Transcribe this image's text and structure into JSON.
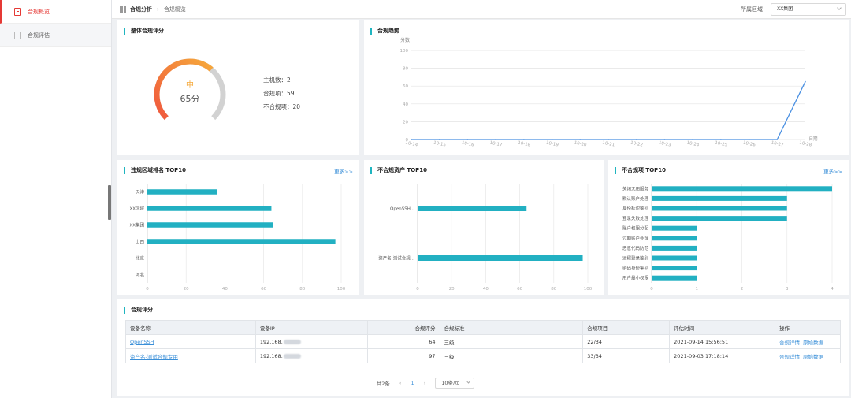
{
  "sidebar": {
    "items": [
      {
        "label": "合规概览",
        "icon": "report-icon",
        "active": true
      },
      {
        "label": "合规评估",
        "icon": "document-icon",
        "active": false
      }
    ]
  },
  "breadcrumb": {
    "parent": "合规分析",
    "current": "合规概览"
  },
  "region_filter": {
    "label": "所属区域",
    "value": "XX集团"
  },
  "overall_score": {
    "title": "整体合规评分",
    "level": "中",
    "score_text": "65分",
    "score": 65,
    "stats": [
      {
        "label": "主机数：",
        "value": "2"
      },
      {
        "label": "合规项：",
        "value": "59"
      },
      {
        "label": "不合规项：",
        "value": "20"
      }
    ]
  },
  "trend": {
    "title": "合规趋势",
    "ylabel": "分数",
    "xlabel": "日期"
  },
  "region_rank": {
    "title": "违规区域排名 TOP10",
    "more": "更多>>"
  },
  "asset_rank": {
    "title": "不合规资产 TOP10"
  },
  "item_rank": {
    "title": "不合规项 TOP10",
    "more": "更多>>"
  },
  "chart_data": [
    {
      "type": "line",
      "title": "合规趋势",
      "ylabel": "分数",
      "xlabel": "日期",
      "x": [
        "10-14",
        "10-15",
        "10-16",
        "10-17",
        "10-18",
        "10-19",
        "10-20",
        "10-21",
        "10-22",
        "10-23",
        "10-24",
        "10-25",
        "10-26",
        "10-27",
        "10-28"
      ],
      "values": [
        0,
        0,
        0,
        0,
        0,
        0,
        0,
        0,
        0,
        0,
        0,
        0,
        0,
        0,
        65
      ],
      "ylim": [
        0,
        100
      ],
      "yticks": [
        0,
        20,
        40,
        60,
        80,
        100
      ],
      "grid": true,
      "color": "#4a90e2"
    },
    {
      "type": "bar",
      "orientation": "horizontal",
      "title": "违规区域排名 TOP10",
      "categories": [
        "天津",
        "XX区域",
        "XX集团",
        "山西",
        "北京",
        "河北"
      ],
      "values": [
        36,
        64,
        65,
        97,
        0,
        0
      ],
      "xlim": [
        0,
        100
      ],
      "xticks": [
        0,
        20,
        40,
        60,
        80,
        100
      ],
      "color": "#22b0c2"
    },
    {
      "type": "bar",
      "orientation": "horizontal",
      "title": "不合规资产 TOP10",
      "categories": [
        "OpenSSH...",
        "资产名-测试合规..."
      ],
      "values": [
        64,
        97
      ],
      "xlim": [
        0,
        100
      ],
      "xticks": [
        0,
        20,
        40,
        60,
        80,
        100
      ],
      "color": "#22b0c2"
    },
    {
      "type": "bar",
      "orientation": "horizontal",
      "title": "不合规项 TOP10",
      "categories": [
        "关闭无用服务",
        "默认账户处理",
        "身份标识鉴别",
        "登录失败处理",
        "账户权限分配",
        "过期账户处理",
        "恶意代码防范",
        "远程登录鉴别",
        "密码身份鉴别",
        "用户最小权限"
      ],
      "values": [
        4,
        3,
        3,
        3,
        1,
        1,
        1,
        1,
        1,
        1
      ],
      "xlim": [
        0,
        4
      ],
      "xticks": [
        0,
        1,
        2,
        3,
        4
      ],
      "color": "#22b0c2"
    }
  ],
  "score_table": {
    "title": "合规评分",
    "columns": [
      "设备名称",
      "设备IP",
      "合规评分",
      "合规标准",
      "合规项目",
      "评估时间",
      "操作"
    ],
    "rows": [
      {
        "name": "OpenSSH",
        "ip": "192.168.",
        "score": "64",
        "standard": "三级",
        "items": "22/34",
        "time": "2021-09-14 15:56:51",
        "op1": "合规详情",
        "op2": "原始数据"
      },
      {
        "name": "资产名-测试合规专用",
        "ip": "192.168.",
        "score": "97",
        "standard": "三级",
        "items": "33/34",
        "time": "2021-09-03 17:18:14",
        "op1": "合规详情",
        "op2": "原始数据"
      }
    ]
  },
  "pagination": {
    "total": "共2条",
    "current": "1",
    "page_size": "10条/页"
  }
}
